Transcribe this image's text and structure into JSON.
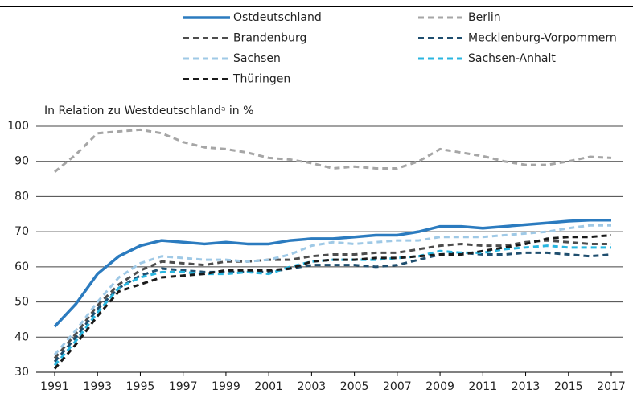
{
  "chart_data": {
    "type": "line",
    "y_axis_label": "In Relation zu Westdeutschlandᵃ in %",
    "x": [
      1991,
      1992,
      1993,
      1994,
      1995,
      1996,
      1997,
      1998,
      1999,
      2000,
      2001,
      2002,
      2003,
      2004,
      2005,
      2006,
      2007,
      2008,
      2009,
      2010,
      2011,
      2012,
      2013,
      2014,
      2015,
      2016,
      2017
    ],
    "xlim": [
      1991,
      2017
    ],
    "xticks": [
      1991,
      1993,
      1995,
      1997,
      1999,
      2001,
      2003,
      2005,
      2007,
      2009,
      2011,
      2013,
      2015,
      2017
    ],
    "ylim": [
      30,
      100
    ],
    "yticks": [
      30,
      40,
      50,
      60,
      70,
      80,
      90,
      100
    ],
    "grid": true,
    "legend": "top",
    "series": [
      {
        "name": "Ostdeutschland",
        "color": "#2b7bbf",
        "line_style": "solid",
        "values": [
          43,
          49.5,
          58,
          63,
          66,
          67.5,
          67,
          66.5,
          67,
          66.5,
          66.5,
          67.5,
          68,
          68,
          68.5,
          69,
          69,
          70,
          71.5,
          71.5,
          71,
          71.5,
          72,
          72.5,
          73,
          73.3,
          73.3
        ]
      },
      {
        "name": "Berlin",
        "color": "#a6a6a6",
        "line_style": "dashed",
        "values": [
          87,
          92,
          98,
          98.5,
          99,
          98,
          95.5,
          94,
          93.5,
          92.5,
          91,
          90.5,
          89.5,
          88,
          88.5,
          88,
          88,
          90,
          93.5,
          92.5,
          91.5,
          90,
          89,
          89,
          90,
          91.3,
          91
        ]
      },
      {
        "name": "Brandenburg",
        "color": "#4d4d4d",
        "line_style": "dashed",
        "values": [
          34,
          41,
          49,
          55,
          59,
          61.5,
          61,
          60.5,
          61.5,
          61.5,
          62,
          62,
          63,
          63.5,
          63.5,
          64,
          64,
          65,
          66,
          66.5,
          66,
          66,
          67,
          67.5,
          67,
          66.5,
          66.5
        ]
      },
      {
        "name": "Mecklenburg-Vorpommern",
        "color": "#1f4e6e",
        "line_style": "dashed",
        "values": [
          33,
          40,
          48,
          54,
          57.5,
          59.5,
          59,
          58.5,
          58.5,
          58.5,
          58.5,
          59.5,
          60.5,
          60.5,
          60.5,
          60,
          60.5,
          62,
          63.5,
          64,
          63.5,
          63.5,
          64,
          64,
          63.5,
          63,
          63.5
        ]
      },
      {
        "name": "Sachsen",
        "color": "#9fc9e6",
        "line_style": "dashed",
        "values": [
          35,
          42,
          50,
          57,
          61,
          63,
          62.5,
          62,
          62,
          61.5,
          62,
          63.5,
          66,
          67,
          66.5,
          67,
          67.5,
          67.5,
          68.5,
          68.5,
          68.5,
          69,
          69.5,
          70,
          71,
          71.8,
          71.8
        ]
      },
      {
        "name": "Sachsen-Anhalt",
        "color": "#29b6e0",
        "line_style": "dashed",
        "values": [
          32,
          39,
          47,
          54,
          57,
          58.5,
          58.5,
          58,
          58,
          58.5,
          58,
          60,
          61.5,
          62,
          62,
          62,
          62.5,
          63,
          64.5,
          64,
          64,
          65,
          65.5,
          66,
          65.5,
          65.5,
          65.5
        ]
      },
      {
        "name": "Thüringen",
        "color": "#1a1a1a",
        "line_style": "dashed",
        "values": [
          31,
          38,
          46,
          53,
          55,
          57,
          57.5,
          58,
          59,
          59,
          59,
          59.5,
          61.5,
          62,
          62,
          62.5,
          62.5,
          63,
          63.5,
          63.5,
          64.5,
          65.5,
          66.5,
          68,
          68.5,
          68.5,
          69
        ]
      }
    ]
  }
}
